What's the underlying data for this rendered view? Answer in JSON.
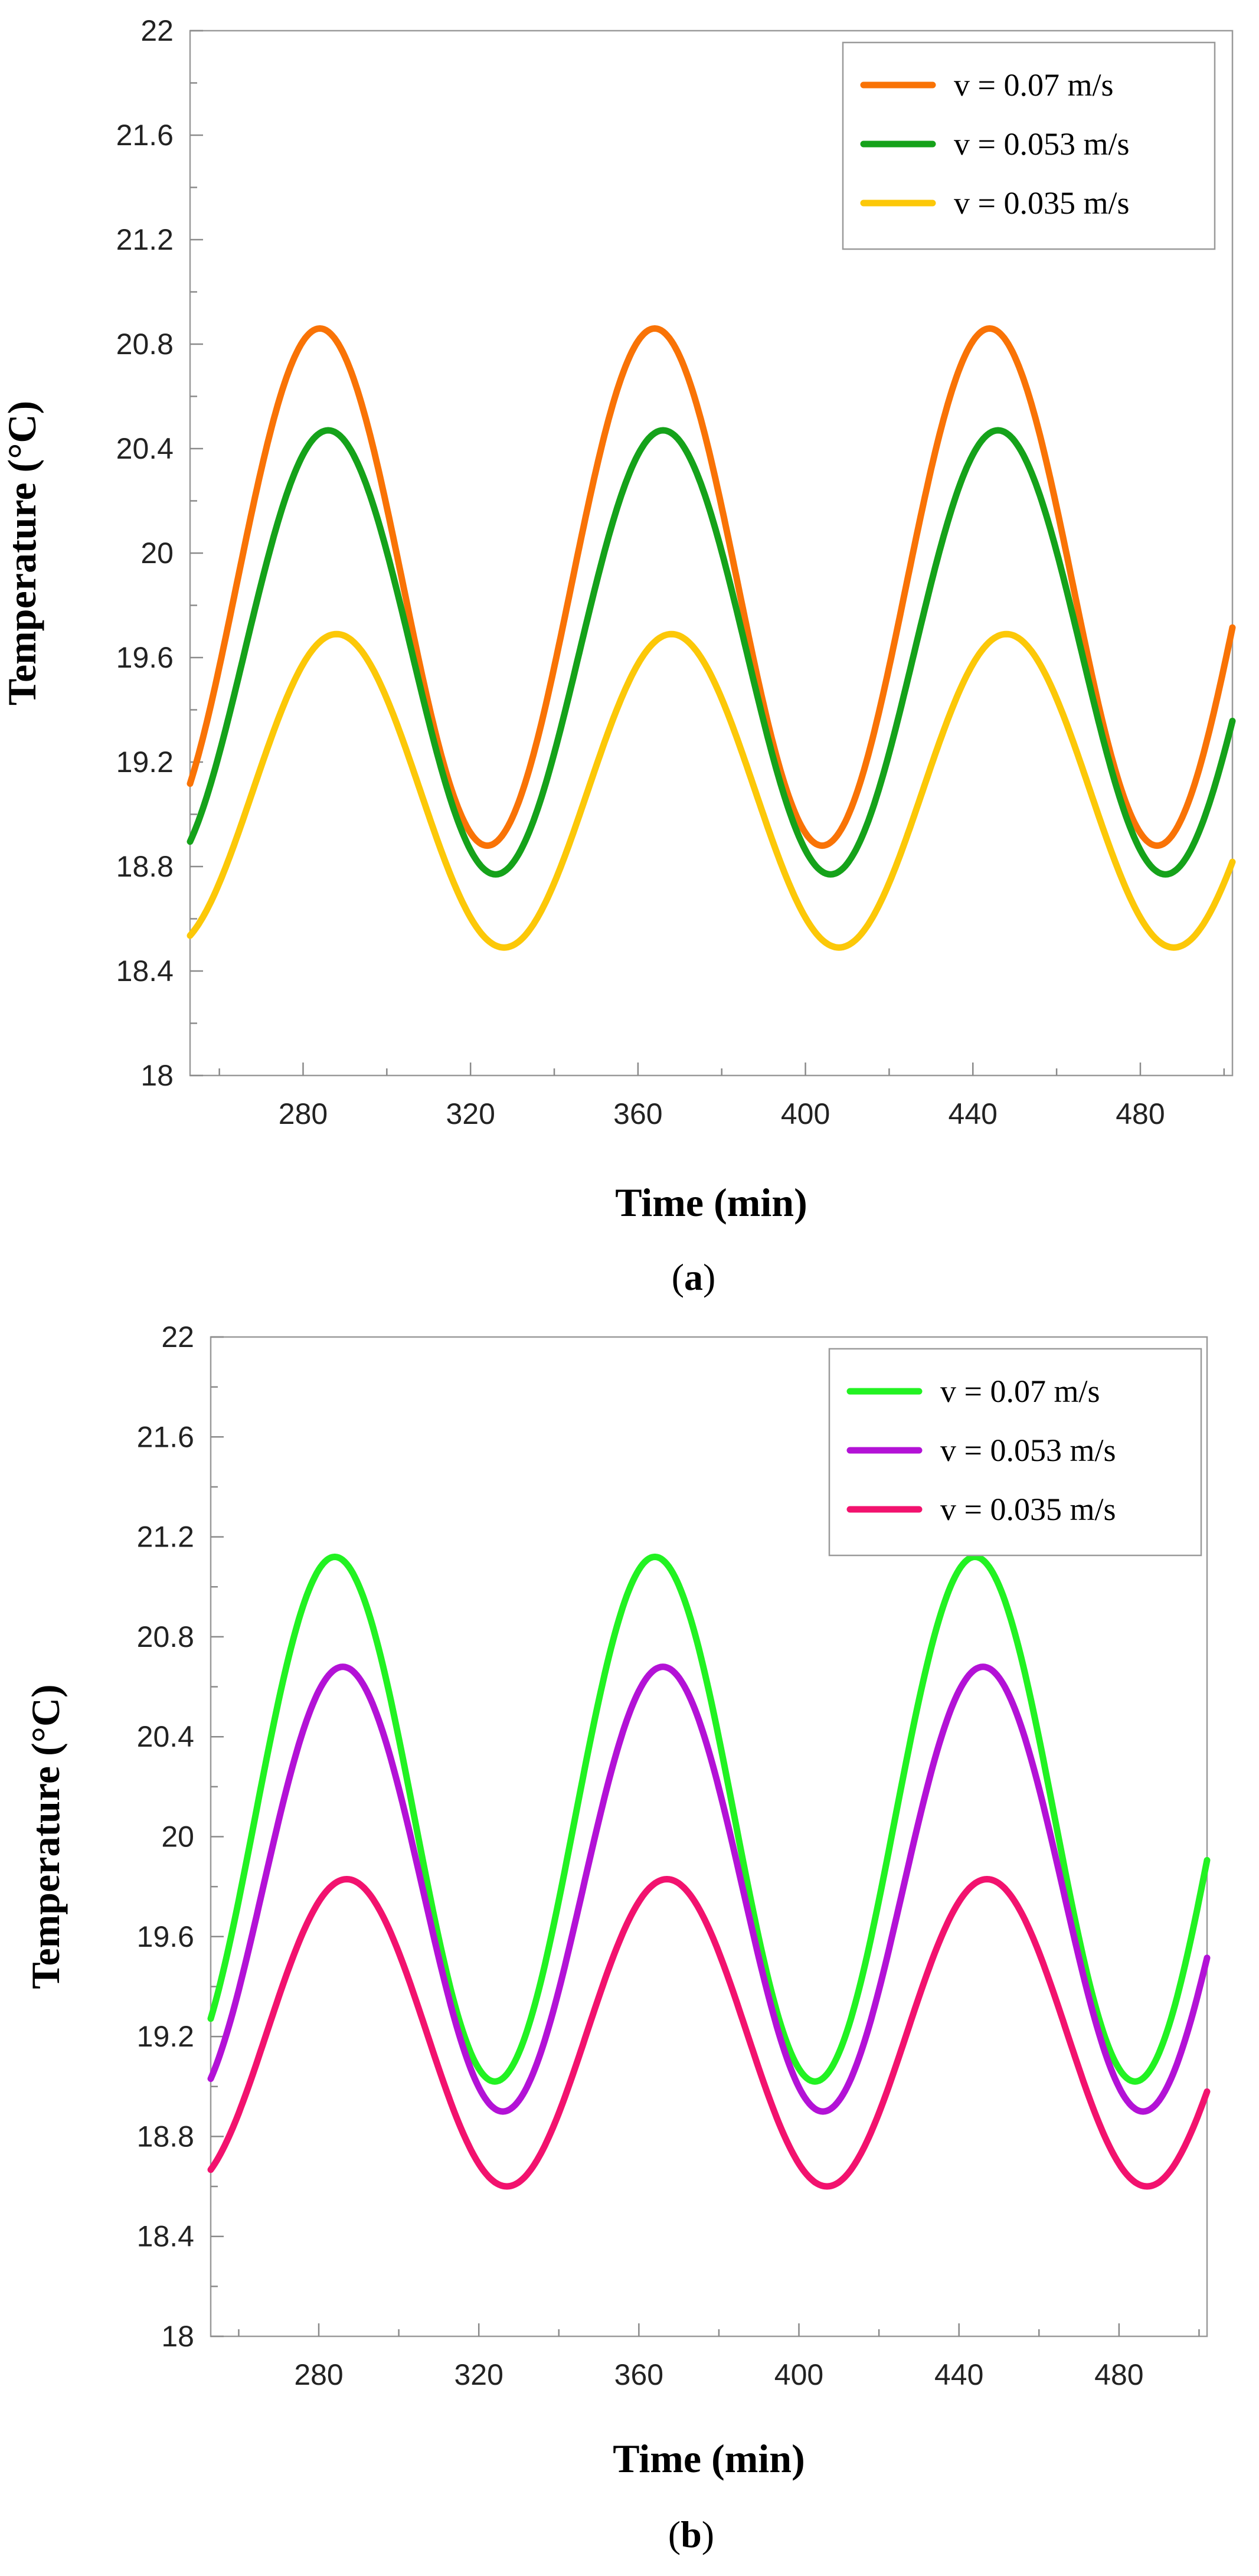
{
  "colors": {
    "a": [
      "#f97306",
      "#15a21a",
      "#fcc808"
    ],
    "b": [
      "#22f222",
      "#b312d6",
      "#f2126e"
    ]
  },
  "chart_data": [
    {
      "type": "line",
      "panel_label": "a",
      "title": "",
      "xlabel": "Time (min)",
      "ylabel": "Temperature (°C)",
      "xlim": [
        253,
        502
      ],
      "ylim": [
        18,
        22
      ],
      "grid": false,
      "legend_position": "top-right",
      "x_ticks": [
        "280",
        "320",
        "360",
        "400",
        "440",
        "480"
      ],
      "y_ticks": [
        "18",
        "18.4",
        "18.8",
        "19.2",
        "19.6",
        "20",
        "20.4",
        "20.8",
        "21.2",
        "21.6",
        "22"
      ],
      "period": 80,
      "series": [
        {
          "name": "v = 0.07 m/s",
          "min": 18.88,
          "max": 20.86,
          "peak_x": [
            284,
            364,
            444
          ],
          "trough_x": [
            324,
            404,
            484
          ]
        },
        {
          "name": "v = 0.053 m/s",
          "min": 18.77,
          "max": 20.47,
          "peak_x": [
            286,
            366,
            446
          ],
          "trough_x": [
            326,
            406,
            486
          ]
        },
        {
          "name": "v = 0.035 m/s",
          "min": 18.49,
          "max": 19.69,
          "peak_x": [
            288,
            368,
            448
          ],
          "trough_x": [
            328,
            408,
            488
          ]
        }
      ]
    },
    {
      "type": "line",
      "panel_label": "b",
      "title": "",
      "xlabel": "Time (min)",
      "ylabel": "Temperature (°C)",
      "xlim": [
        253,
        502
      ],
      "ylim": [
        18,
        22
      ],
      "grid": false,
      "legend_position": "top-right",
      "x_ticks": [
        "280",
        "320",
        "360",
        "400",
        "440",
        "480"
      ],
      "y_ticks": [
        "18",
        "18.4",
        "18.8",
        "19.2",
        "19.6",
        "20",
        "20.4",
        "20.8",
        "21.2",
        "21.6",
        "22"
      ],
      "period": 80,
      "series": [
        {
          "name": "v = 0.07 m/s",
          "min": 19.02,
          "max": 21.12,
          "peak_x": [
            284,
            364,
            444
          ],
          "trough_x": [
            324,
            404,
            484
          ]
        },
        {
          "name": "v = 0.053 m/s",
          "min": 18.9,
          "max": 20.68,
          "peak_x": [
            286,
            366,
            446
          ],
          "trough_x": [
            326,
            406,
            486
          ]
        },
        {
          "name": "v = 0.035 m/s",
          "min": 18.6,
          "max": 19.83,
          "peak_x": [
            287,
            367,
            447
          ],
          "trough_x": [
            327,
            407,
            487
          ]
        }
      ]
    }
  ]
}
